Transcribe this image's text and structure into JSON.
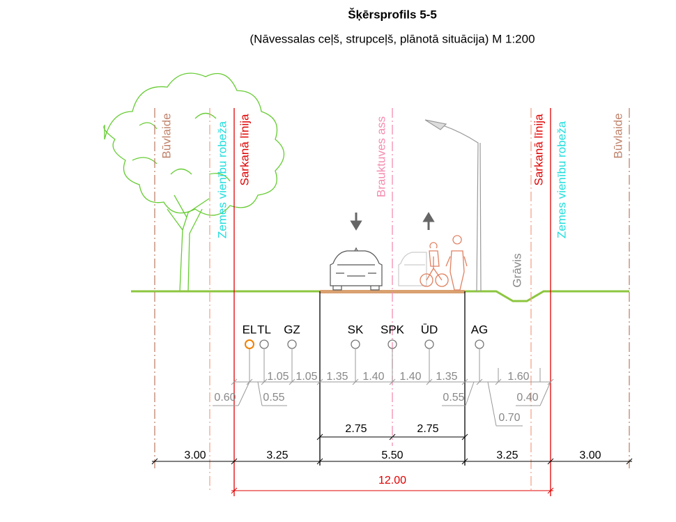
{
  "header": {
    "title": "Šķērsprofils 5-5",
    "subtitle": "(Nāvessalas ceļš, strupceļš, plānotā situācija) M 1:200"
  },
  "vertical_labels": {
    "left_building_line": "Būvlaide",
    "left_plot_boundary": "Zemes vienību robeža",
    "left_red_line": "Sarkanā līnija",
    "road_axis": "Brauktuves ass",
    "right_red_line": "Sarkanā līnija",
    "right_plot_boundary": "Zemes vienību robeža",
    "right_building_line": "Būvlaide",
    "ditch": "Grāvis"
  },
  "utilities": [
    "EL",
    "TL",
    "GZ",
    "SK",
    "SPK",
    "ŪD",
    "AG"
  ],
  "utility_spacing": [
    "1.05",
    "1.05",
    "1.35",
    "1.40",
    "1.40",
    "1.35",
    "1.60"
  ],
  "utility_offsets": [
    "0.60",
    "0.55",
    "0.55",
    "0.40",
    "0.70"
  ],
  "lanes": [
    "2.75",
    "2.75"
  ],
  "zones": [
    "3.00",
    "3.25",
    "5.50",
    "3.25",
    "3.00"
  ],
  "total_width": "12.00"
}
